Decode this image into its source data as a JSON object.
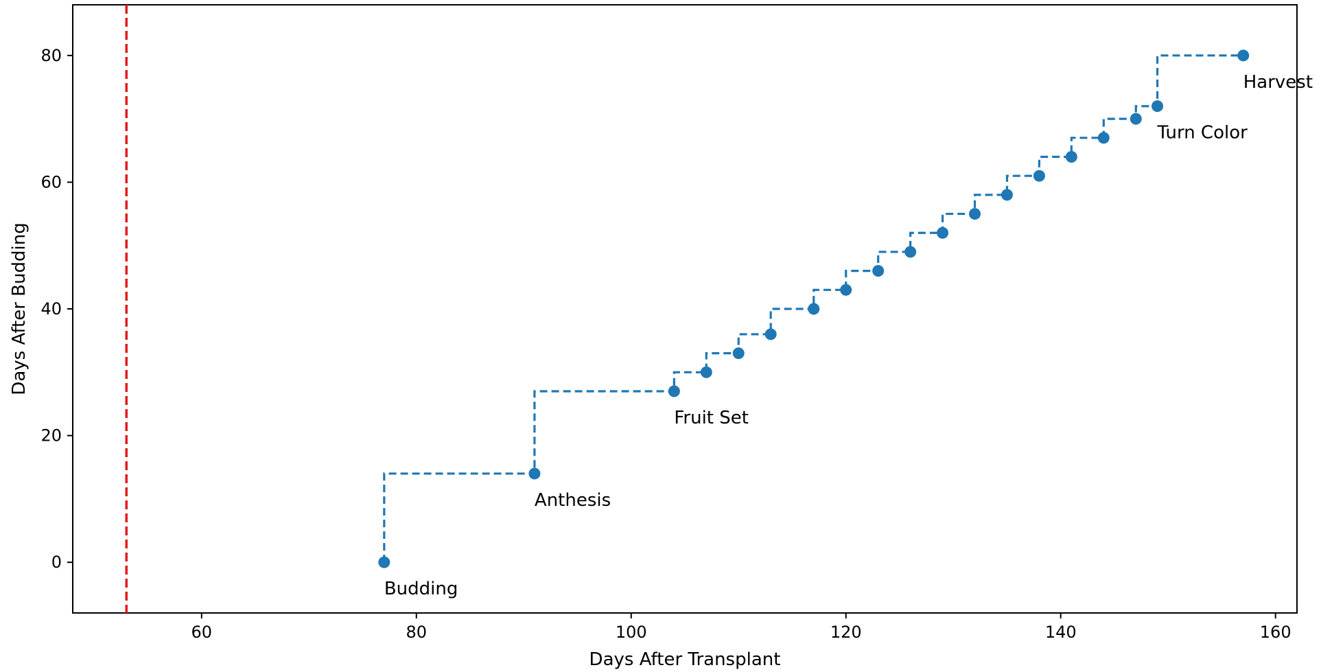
{
  "chart_data": {
    "type": "line",
    "title": "",
    "xlabel": "Days After Transplant",
    "ylabel": "Days After Budding",
    "xlim": [
      48,
      162
    ],
    "ylim": [
      -8,
      88
    ],
    "xticks": [
      60,
      80,
      100,
      120,
      140,
      160
    ],
    "yticks": [
      0,
      20,
      40,
      60,
      80
    ],
    "grid": false,
    "legend": "none",
    "vline": {
      "x": 53,
      "color": "#e31a1c",
      "style": "dashed"
    },
    "series": [
      {
        "color": "#1f77b4",
        "style": "dashed steps",
        "x": [
          77,
          91,
          104,
          107,
          110,
          113,
          117,
          120,
          123,
          126,
          129,
          132,
          135,
          138,
          141,
          144,
          147,
          149,
          157
        ],
        "y": [
          0,
          14,
          27,
          30,
          33,
          36,
          40,
          43,
          46,
          49,
          52,
          55,
          58,
          61,
          64,
          67,
          70,
          72,
          80
        ]
      }
    ],
    "annotations": [
      {
        "text": "Budding",
        "x": 77,
        "y": 0
      },
      {
        "text": "Anthesis",
        "x": 91,
        "y": 14
      },
      {
        "text": "Fruit Set",
        "x": 104,
        "y": 27
      },
      {
        "text": "Turn Color",
        "x": 149,
        "y": 72
      },
      {
        "text": "Harvest",
        "x": 157,
        "y": 80
      }
    ]
  }
}
